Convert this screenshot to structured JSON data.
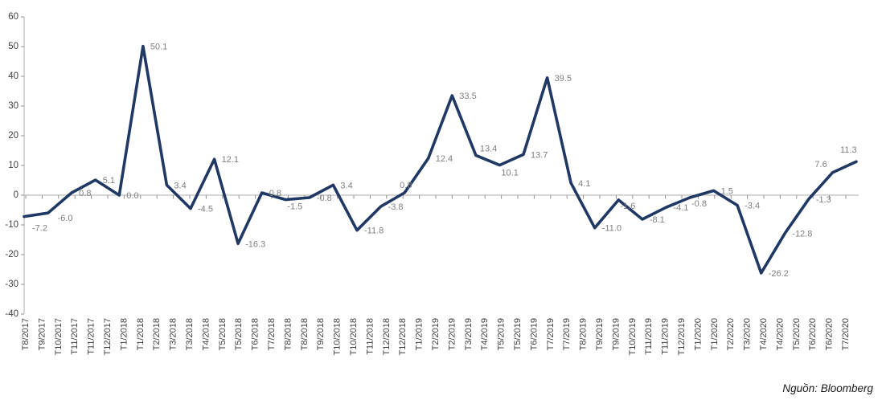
{
  "chart_data": {
    "type": "line",
    "title": "",
    "xlabel": "",
    "ylabel": "",
    "ylim": [
      -40,
      60
    ],
    "yticks": [
      60,
      50,
      40,
      30,
      20,
      10,
      0,
      -10,
      -20,
      -30,
      -40
    ],
    "grid": "none (horizontal zero axis line only)",
    "legend": "none",
    "data_labels_shown": true,
    "series": [
      {
        "x": [
          "T8/2017",
          "T9/2017",
          "T10/2017",
          "T11/2017",
          "T12/2017",
          "T1/2018",
          "T2/2018",
          "T3/2018",
          "T4/2018",
          "T5/2018",
          "T6/2018",
          "T7/2018",
          "T8/2018",
          "T9/2018",
          "T10/2018",
          "T11/2018",
          "T12/2018",
          "T1/2019",
          "T2/2019",
          "T3/2019",
          "T4/2019",
          "T5/2019",
          "T6/2019",
          "T7/2019",
          "T8/2019",
          "T9/2019",
          "T10/2019",
          "T11/2019",
          "T12/2019",
          "T1/2020",
          "T2/2020",
          "T3/2020",
          "T4/2020",
          "T5/2020",
          "T6/2020",
          "T7/2020"
        ],
        "values": [
          -7.2,
          -6.0,
          0.8,
          5.1,
          0.0,
          50.1,
          3.4,
          -4.5,
          12.1,
          -16.3,
          0.8,
          -1.5,
          -0.8,
          3.4,
          -11.8,
          -3.8,
          0.8,
          12.4,
          33.5,
          13.4,
          10.1,
          13.7,
          39.5,
          4.1,
          -11.0,
          -1.6,
          -8.1,
          -4.1,
          -0.8,
          1.5,
          -3.4,
          -26.2,
          -12.8,
          -1.3,
          7.6,
          11.3
        ]
      }
    ],
    "x_axis_tick_labels_as_shown": [
      "T8/2017",
      "T9/2017",
      "T10/2017",
      "T11/2017",
      "T11/2017",
      "T12/2017",
      "T1/2018",
      "T1/2018",
      "T2/2018",
      "T3/2018",
      "T3/2018",
      "T4/2018",
      "T5/2018",
      "T5/2018",
      "T6/2018",
      "T7/2018",
      "T8/2018",
      "T8/2018",
      "T9/2018",
      "T10/2018",
      "T10/2018",
      "T11/2018",
      "T12/2018",
      "T12/2018",
      "T1/2019",
      "T2/2019",
      "T2/2019",
      "T3/2019",
      "T4/2019",
      "T5/2019",
      "T5/2019",
      "T6/2019",
      "T7/2019",
      "T7/2019",
      "T8/2019",
      "T9/2019",
      "T9/2019",
      "T10/2019",
      "T11/2019",
      "T11/2019",
      "T12/2019",
      "T1/2020",
      "T1/2020",
      "T2/2020",
      "T3/2020",
      "T4/2020",
      "T4/2020",
      "T5/2020",
      "T6/2020",
      "T6/2020",
      "T7/2020"
    ],
    "colors": {
      "line": "#1F3864",
      "data_label": "#7F7F7F",
      "axis_line": "#BDBDBD",
      "tick_mark": "#8F8F8F",
      "axis_text": "#3F3F3F"
    },
    "label_offsets": {
      "default": [
        9,
        4
      ],
      "0": [
        10,
        18
      ],
      "1": [
        12,
        10
      ],
      "11": [
        2,
        12
      ],
      "16": [
        -6,
        -6
      ],
      "19": [
        5,
        -5
      ],
      "20": [
        2,
        13
      ],
      "25": [
        2,
        11
      ],
      "28": [
        2,
        11
      ],
      "34": [
        -22,
        -7
      ],
      "35": [
        -20,
        -11
      ]
    }
  },
  "source_note": "Nguồn: Bloomberg"
}
